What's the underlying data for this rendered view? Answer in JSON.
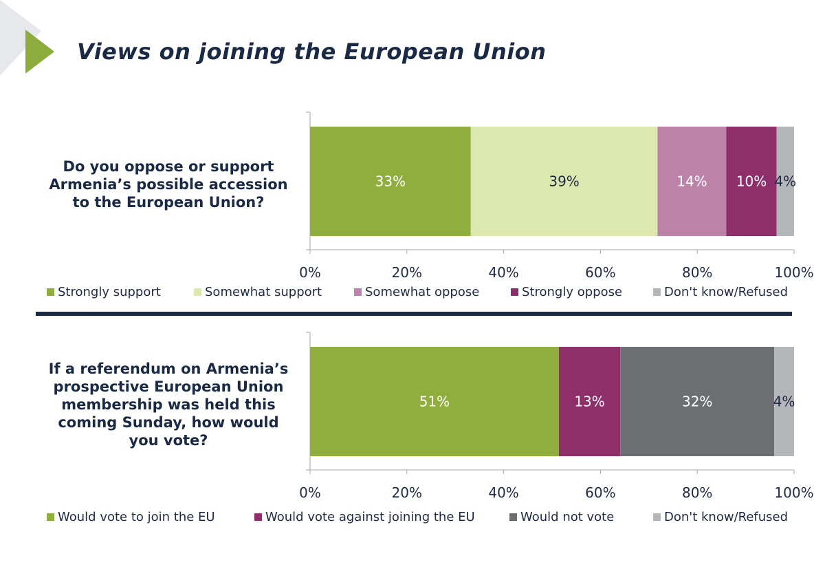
{
  "page": {
    "title": "Views on joining the European Union"
  },
  "colors": {
    "accent_green": "#8cad3e",
    "corner_grey": "#e6e8eb",
    "divider": "#1a2a44"
  },
  "chart_data": [
    {
      "type": "bar",
      "orientation": "horizontal",
      "stacked": true,
      "title": "Do you oppose or support Armenia’s possible accession to the European Union?",
      "xlim": [
        0,
        100
      ],
      "xticks": [
        "0%",
        "20%",
        "40%",
        "60%",
        "80%",
        "100%"
      ],
      "series": [
        {
          "name": "Strongly support",
          "value": 33.2,
          "label": "33%",
          "color": "#8fae3e",
          "label_color": "#ffffff"
        },
        {
          "name": "Somewhat support",
          "value": 38.6,
          "label": "39%",
          "color": "#dce8ad",
          "label_color": "#1f2a44"
        },
        {
          "name": "Somewhat oppose",
          "value": 14.2,
          "label": "14%",
          "color": "#bd82a9",
          "label_color": "#ffffff"
        },
        {
          "name": "Strongly oppose",
          "value": 10.4,
          "label": "10%",
          "color": "#8e2f6c",
          "label_color": "#ffffff"
        },
        {
          "name": "Don't know/Refused",
          "value": 3.6,
          "label": "4%",
          "color": "#b5b6b9",
          "label_color": "#1f2a44"
        }
      ]
    },
    {
      "type": "bar",
      "orientation": "horizontal",
      "stacked": true,
      "title": "If a referendum on Armenia’s prospective European Union membership was held this coming Sunday, how would you vote?",
      "xlim": [
        0,
        100
      ],
      "xticks": [
        "0%",
        "20%",
        "40%",
        "60%",
        "80%",
        "100%"
      ],
      "series": [
        {
          "name": "Would vote to join the EU",
          "value": 51.4,
          "label": "51%",
          "color": "#8fae3e",
          "label_color": "#ffffff"
        },
        {
          "name": "Would vote against joining the EU",
          "value": 12.7,
          "label": "13%",
          "color": "#8e2f6c",
          "label_color": "#ffffff"
        },
        {
          "name": "Would not vote",
          "value": 31.8,
          "label": "32%",
          "color": "#6d6e71",
          "label_color": "#ffffff"
        },
        {
          "name": "Don't know/Refused",
          "value": 4.1,
          "label": "4%",
          "color": "#b5b6b9",
          "label_color": "#1f2a44"
        }
      ]
    }
  ]
}
